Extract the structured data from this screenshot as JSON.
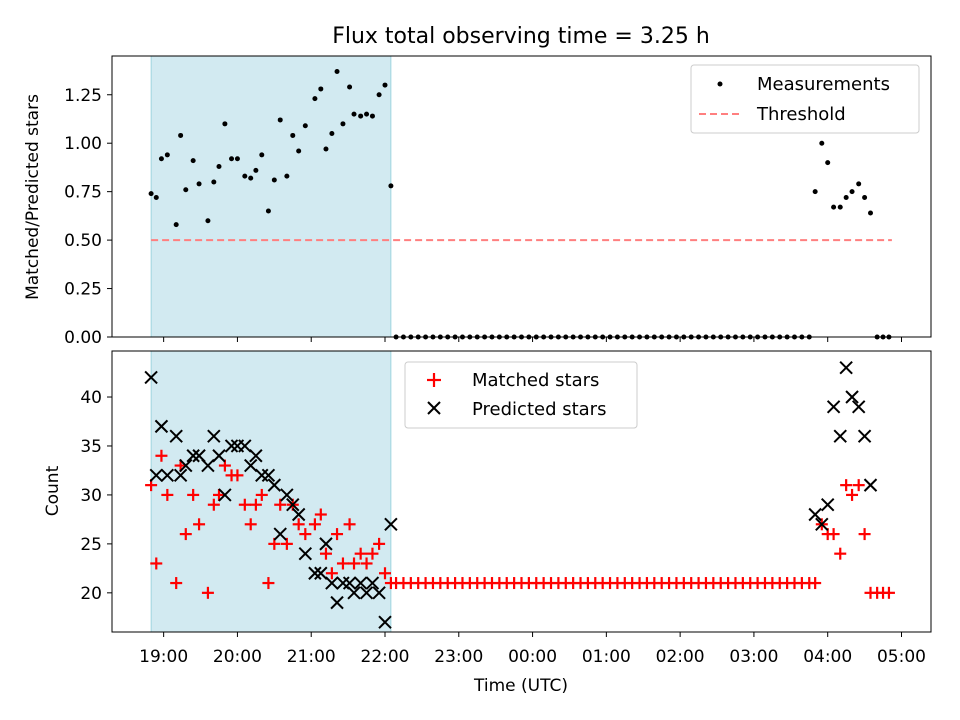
{
  "chart_data": [
    {
      "type": "scatter",
      "title": "Flux total observing time = 3.25 h",
      "xlabel": "",
      "ylabel": "Matched/Predicted stars",
      "xlim": [
        18.3,
        29.4
      ],
      "ylim": [
        0,
        1.45
      ],
      "yticks": [
        {
          "v": 0.0,
          "label": "0.00"
        },
        {
          "v": 0.25,
          "label": "0.25"
        },
        {
          "v": 0.5,
          "label": "0.50"
        },
        {
          "v": 0.75,
          "label": "0.75"
        },
        {
          "v": 1.0,
          "label": "1.00"
        },
        {
          "v": 1.25,
          "label": "1.25"
        }
      ],
      "shaded_span": [
        18.83,
        22.08
      ],
      "threshold": {
        "name": "Threshold",
        "y": 0.5,
        "x_range": [
          18.83,
          28.87
        ],
        "color": "#ff7f7f"
      },
      "legend": [
        "Measurements",
        "Threshold"
      ],
      "series": [
        {
          "name": "Measurements",
          "color": "#000000",
          "x": [
            18.83,
            18.9,
            18.97,
            19.05,
            19.17,
            19.23,
            19.3,
            19.4,
            19.48,
            19.6,
            19.68,
            19.75,
            19.83,
            19.92,
            20.0,
            20.1,
            20.18,
            20.25,
            20.33,
            20.42,
            20.5,
            20.58,
            20.67,
            20.75,
            20.83,
            20.92,
            21.05,
            21.13,
            21.2,
            21.28,
            21.35,
            21.43,
            21.52,
            21.58,
            21.67,
            21.75,
            21.83,
            21.92,
            22.0,
            22.08,
            22.15,
            22.25,
            22.35,
            22.45,
            22.55,
            22.65,
            22.75,
            22.85,
            22.95,
            23.05,
            23.15,
            23.25,
            23.35,
            23.45,
            23.55,
            23.65,
            23.75,
            23.85,
            23.95,
            24.05,
            24.15,
            24.25,
            24.35,
            24.45,
            24.55,
            24.65,
            24.75,
            24.85,
            24.95,
            25.05,
            25.15,
            25.25,
            25.35,
            25.45,
            25.55,
            25.65,
            25.75,
            25.85,
            25.95,
            26.05,
            26.15,
            26.25,
            26.35,
            26.45,
            26.55,
            26.65,
            26.75,
            26.85,
            26.95,
            27.05,
            27.15,
            27.25,
            27.35,
            27.45,
            27.55,
            27.65,
            27.75,
            27.83,
            27.92,
            28.0,
            28.08,
            28.17,
            28.25,
            28.33,
            28.42,
            28.5,
            28.58,
            28.67,
            28.75,
            28.83
          ],
          "y": [
            0.74,
            0.72,
            0.92,
            0.94,
            0.58,
            1.04,
            0.76,
            0.91,
            0.79,
            0.6,
            0.8,
            0.88,
            1.1,
            0.92,
            0.92,
            0.83,
            0.82,
            0.86,
            0.94,
            0.65,
            0.81,
            1.12,
            0.83,
            1.04,
            0.96,
            1.09,
            1.23,
            1.28,
            0.97,
            1.05,
            1.37,
            1.1,
            1.29,
            1.15,
            1.14,
            1.15,
            1.14,
            1.25,
            1.3,
            0.78,
            0,
            0,
            0,
            0,
            0,
            0,
            0,
            0,
            0,
            0,
            0,
            0,
            0,
            0,
            0,
            0,
            0,
            0,
            0,
            0,
            0,
            0,
            0,
            0,
            0,
            0,
            0,
            0,
            0,
            0,
            0,
            0,
            0,
            0,
            0,
            0,
            0,
            0,
            0,
            0,
            0,
            0,
            0,
            0,
            0,
            0,
            0,
            0,
            0,
            0,
            0,
            0,
            0,
            0,
            0,
            0,
            0,
            0.75,
            1.0,
            0.9,
            0.67,
            0.67,
            0.72,
            0.75,
            0.79,
            0.72,
            0.64,
            0,
            0,
            0
          ]
        }
      ]
    },
    {
      "type": "scatter",
      "title": "",
      "xlabel": "Time (UTC)",
      "ylabel": "Count",
      "xlim": [
        18.3,
        29.4
      ],
      "ylim": [
        16,
        44.7
      ],
      "yticks": [
        {
          "v": 20,
          "label": "20"
        },
        {
          "v": 25,
          "label": "25"
        },
        {
          "v": 30,
          "label": "30"
        },
        {
          "v": 35,
          "label": "35"
        },
        {
          "v": 40,
          "label": "40"
        }
      ],
      "xticks": [
        {
          "v": 19,
          "label": "19:00"
        },
        {
          "v": 20,
          "label": "20:00"
        },
        {
          "v": 21,
          "label": "21:00"
        },
        {
          "v": 22,
          "label": "22:00"
        },
        {
          "v": 23,
          "label": "23:00"
        },
        {
          "v": 24,
          "label": "00:00"
        },
        {
          "v": 25,
          "label": "01:00"
        },
        {
          "v": 26,
          "label": "02:00"
        },
        {
          "v": 27,
          "label": "03:00"
        },
        {
          "v": 28,
          "label": "04:00"
        },
        {
          "v": 29,
          "label": "05:00"
        }
      ],
      "shaded_span": [
        18.83,
        22.08
      ],
      "legend": [
        "Matched stars",
        "Predicted stars"
      ],
      "series": [
        {
          "name": "Matched stars",
          "color": "#ff0000",
          "marker": "plus",
          "x": [
            18.83,
            18.9,
            18.97,
            19.05,
            19.17,
            19.23,
            19.3,
            19.4,
            19.48,
            19.6,
            19.68,
            19.75,
            19.83,
            19.92,
            20.0,
            20.1,
            20.18,
            20.25,
            20.33,
            20.42,
            20.5,
            20.58,
            20.67,
            20.75,
            20.83,
            20.92,
            21.05,
            21.13,
            21.2,
            21.28,
            21.35,
            21.43,
            21.52,
            21.58,
            21.67,
            21.75,
            21.83,
            21.92,
            22.0,
            22.08,
            22.15,
            22.25,
            22.35,
            22.45,
            22.55,
            22.65,
            22.75,
            22.85,
            22.95,
            23.05,
            23.15,
            23.25,
            23.35,
            23.45,
            23.55,
            23.65,
            23.75,
            23.85,
            23.95,
            24.05,
            24.15,
            24.25,
            24.35,
            24.45,
            24.55,
            24.65,
            24.75,
            24.85,
            24.95,
            25.05,
            25.15,
            25.25,
            25.35,
            25.45,
            25.55,
            25.65,
            25.75,
            25.85,
            25.95,
            26.05,
            26.15,
            26.25,
            26.35,
            26.45,
            26.55,
            26.65,
            26.75,
            26.85,
            26.95,
            27.05,
            27.15,
            27.25,
            27.35,
            27.45,
            27.55,
            27.65,
            27.75,
            27.83,
            27.92,
            28.0,
            28.08,
            28.17,
            28.25,
            28.33,
            28.42,
            28.5,
            28.58,
            28.67,
            28.75,
            28.83
          ],
          "y": [
            31,
            23,
            34,
            30,
            21,
            33,
            26,
            30,
            27,
            20,
            29,
            30,
            33,
            32,
            32,
            29,
            27,
            29,
            30,
            21,
            25,
            29,
            25,
            29,
            27,
            26,
            27,
            28,
            24,
            22,
            26,
            23,
            27,
            23,
            24,
            23,
            24,
            25,
            22,
            21,
            21,
            21,
            21,
            21,
            21,
            21,
            21,
            21,
            21,
            21,
            21,
            21,
            21,
            21,
            21,
            21,
            21,
            21,
            21,
            21,
            21,
            21,
            21,
            21,
            21,
            21,
            21,
            21,
            21,
            21,
            21,
            21,
            21,
            21,
            21,
            21,
            21,
            21,
            21,
            21,
            21,
            21,
            21,
            21,
            21,
            21,
            21,
            21,
            21,
            21,
            21,
            21,
            21,
            21,
            21,
            21,
            21,
            21,
            27,
            26,
            26,
            24,
            31,
            30,
            31,
            26,
            20,
            20,
            20,
            20
          ]
        },
        {
          "name": "Predicted stars",
          "color": "#000000",
          "marker": "x",
          "x": [
            18.83,
            18.9,
            18.97,
            19.05,
            19.17,
            19.23,
            19.3,
            19.4,
            19.48,
            19.6,
            19.68,
            19.75,
            19.83,
            19.92,
            20.0,
            20.1,
            20.18,
            20.25,
            20.33,
            20.42,
            20.5,
            20.58,
            20.67,
            20.75,
            20.83,
            20.92,
            21.05,
            21.13,
            21.2,
            21.28,
            21.35,
            21.43,
            21.52,
            21.58,
            21.67,
            21.75,
            21.83,
            21.92,
            22.0,
            22.08,
            27.83,
            27.92,
            28.0,
            28.08,
            28.17,
            28.25,
            28.33,
            28.42,
            28.5,
            28.58
          ],
          "y": [
            42,
            32,
            37,
            32,
            36,
            32,
            33,
            34,
            34,
            33,
            36,
            34,
            30,
            35,
            35,
            35,
            33,
            34,
            32,
            32,
            31,
            26,
            30,
            29,
            28,
            24,
            22,
            22,
            25,
            21,
            19,
            21,
            21,
            20,
            21,
            20,
            21,
            20,
            17,
            27,
            28,
            27,
            29,
            39,
            36,
            43,
            40,
            39,
            36,
            31
          ]
        }
      ]
    }
  ]
}
